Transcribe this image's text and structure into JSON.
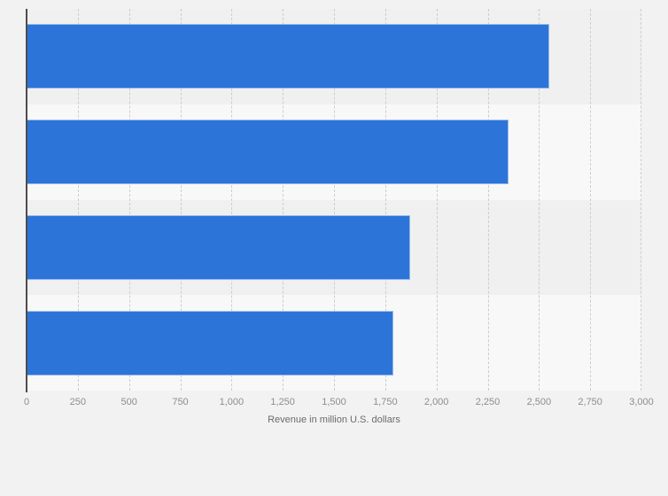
{
  "chart_data": {
    "type": "bar",
    "orientation": "horizontal",
    "categories": [
      "",
      "",
      "",
      ""
    ],
    "values": [
      2550,
      2350,
      1870,
      1790
    ],
    "xlabel": "Revenue in million U.S. dollars",
    "xlim": [
      0,
      3000
    ],
    "x_tick_step": 250,
    "x_tick_labels": [
      "0",
      "250",
      "500",
      "750",
      "1,000",
      "1,250",
      "1,500",
      "1,750",
      "2,000",
      "2,250",
      "2,500",
      "2,750",
      "3,000"
    ],
    "grid": "vertical-dashed",
    "legend": "none",
    "plot_bands": "alternating-horizontal"
  },
  "colors": {
    "page_bg": "#f2f2f2",
    "band_odd": "#f0f0f0",
    "band_even": "#f8f8f8",
    "gridline": "#cdcdcd",
    "axis_line": "#4d4d4d",
    "tick_label": "#8d8d8d",
    "axis_title": "#6b6b6b",
    "bar": "#2d74d9"
  }
}
